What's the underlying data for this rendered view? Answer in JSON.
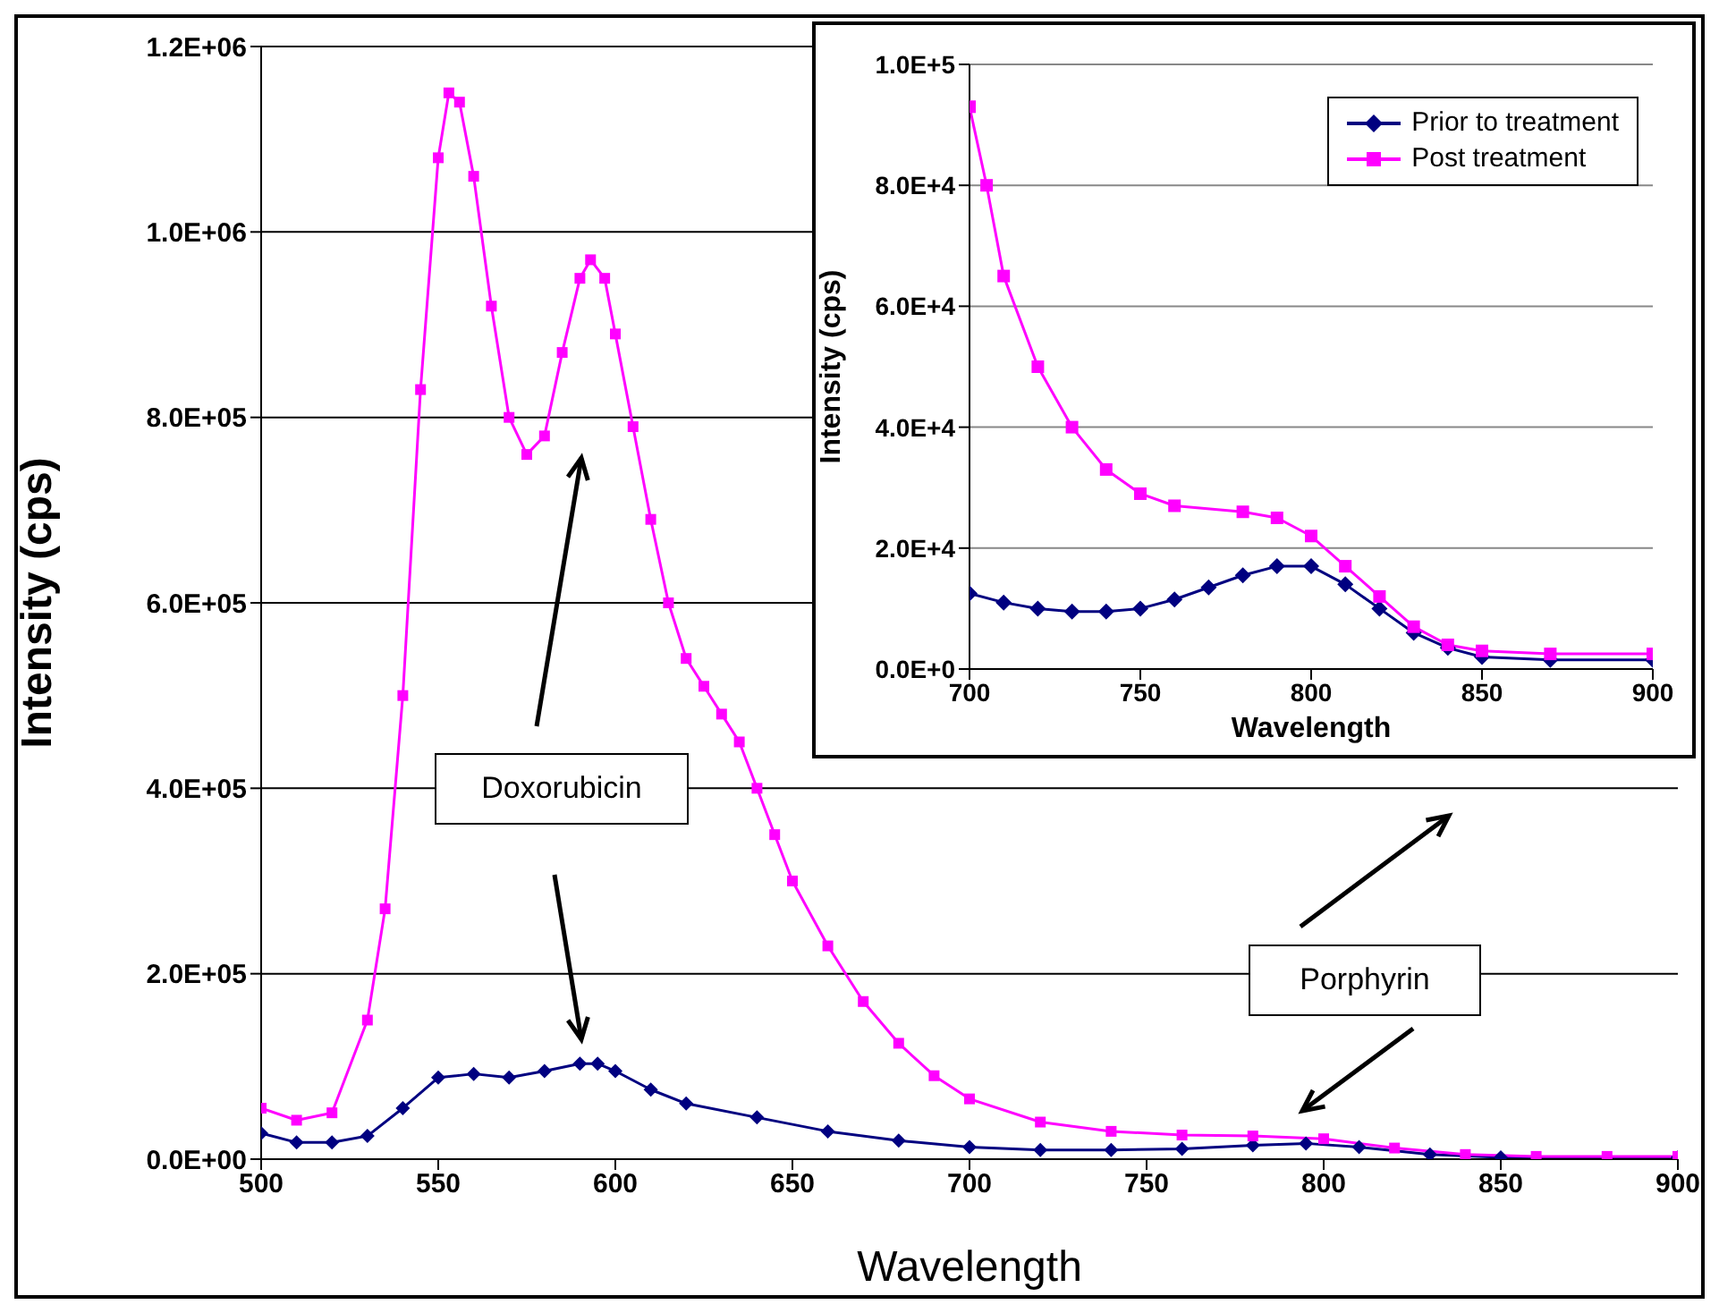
{
  "chart_data": [
    {
      "type": "line",
      "xlabel": "Wavelength",
      "ylabel": "Intensity (cps)",
      "xlim": [
        500,
        900
      ],
      "xticks": [
        500,
        550,
        600,
        650,
        700,
        750,
        800,
        850,
        900
      ],
      "ylim": [
        0,
        1200000
      ],
      "yticks": [
        {
          "value": 0,
          "label": "0.0E+00"
        },
        {
          "value": 200000,
          "label": "2.0E+05"
        },
        {
          "value": 400000,
          "label": "4.0E+05"
        },
        {
          "value": 600000,
          "label": "6.0E+05"
        },
        {
          "value": 800000,
          "label": "8.0E+05"
        },
        {
          "value": 1000000,
          "label": "1.0E+06"
        },
        {
          "value": 1200000,
          "label": "1.2E+06"
        }
      ],
      "grid": "y",
      "annotations": [
        "Doxorubicin",
        "Porphyrin"
      ],
      "series": [
        {
          "color": "#000080",
          "marker": "diamond",
          "x": [
            500,
            510,
            520,
            530,
            540,
            550,
            560,
            570,
            580,
            590,
            595,
            600,
            610,
            620,
            640,
            660,
            680,
            700,
            720,
            740,
            760,
            780,
            795,
            810,
            830,
            850,
            900
          ],
          "values": [
            28000,
            18000,
            18000,
            25000,
            55000,
            88000,
            92000,
            88000,
            95000,
            103000,
            103000,
            95000,
            75000,
            60000,
            45000,
            30000,
            20000,
            13000,
            10000,
            10000,
            11000,
            15000,
            17000,
            13000,
            5000,
            2000,
            2000
          ]
        },
        {
          "color": "#ff00ff",
          "marker": "square",
          "x": [
            500,
            510,
            520,
            530,
            535,
            540,
            545,
            550,
            553,
            556,
            560,
            565,
            570,
            575,
            580,
            585,
            590,
            593,
            597,
            600,
            605,
            610,
            615,
            620,
            625,
            630,
            635,
            640,
            645,
            650,
            660,
            670,
            680,
            690,
            700,
            720,
            740,
            760,
            780,
            800,
            820,
            840,
            860,
            880,
            900
          ],
          "values": [
            55000,
            42000,
            50000,
            150000,
            270000,
            500000,
            830000,
            1080000,
            1150000,
            1140000,
            1060000,
            920000,
            800000,
            760000,
            780000,
            870000,
            950000,
            970000,
            950000,
            890000,
            790000,
            690000,
            600000,
            540000,
            510000,
            480000,
            450000,
            400000,
            350000,
            300000,
            230000,
            170000,
            125000,
            90000,
            65000,
            40000,
            30000,
            26000,
            25000,
            22000,
            12000,
            5000,
            3000,
            3000,
            3000
          ]
        }
      ]
    },
    {
      "type": "line",
      "xlabel": "Wavelength",
      "ylabel": "Intensity (cps)",
      "xlim": [
        700,
        900
      ],
      "xticks": [
        700,
        750,
        800,
        850,
        900
      ],
      "ylim": [
        0,
        100000
      ],
      "yticks": [
        {
          "value": 0,
          "label": "0.0E+0"
        },
        {
          "value": 20000,
          "label": "2.0E+4"
        },
        {
          "value": 40000,
          "label": "4.0E+4"
        },
        {
          "value": 60000,
          "label": "6.0E+4"
        },
        {
          "value": 80000,
          "label": "8.0E+4"
        },
        {
          "value": 100000,
          "label": "1.0E+5"
        }
      ],
      "grid": "y",
      "legend": "top right",
      "series": [
        {
          "name": "Prior to treatment",
          "color": "#000080",
          "marker": "diamond",
          "x": [
            700,
            710,
            720,
            730,
            740,
            750,
            760,
            770,
            780,
            790,
            800,
            810,
            820,
            830,
            840,
            850,
            870,
            900
          ],
          "values": [
            12500,
            11000,
            10000,
            9500,
            9500,
            10000,
            11500,
            13500,
            15500,
            17000,
            17000,
            14000,
            10000,
            6000,
            3500,
            2000,
            1500,
            1500
          ]
        },
        {
          "name": "Post treatment",
          "color": "#ff00ff",
          "marker": "square",
          "x": [
            700,
            705,
            710,
            720,
            730,
            740,
            750,
            760,
            780,
            790,
            800,
            810,
            820,
            830,
            840,
            850,
            870,
            900
          ],
          "values": [
            93000,
            80000,
            65000,
            50000,
            40000,
            33000,
            29000,
            27000,
            26000,
            25000,
            22000,
            17000,
            12000,
            7000,
            4000,
            3000,
            2500,
            2500
          ]
        }
      ]
    }
  ]
}
